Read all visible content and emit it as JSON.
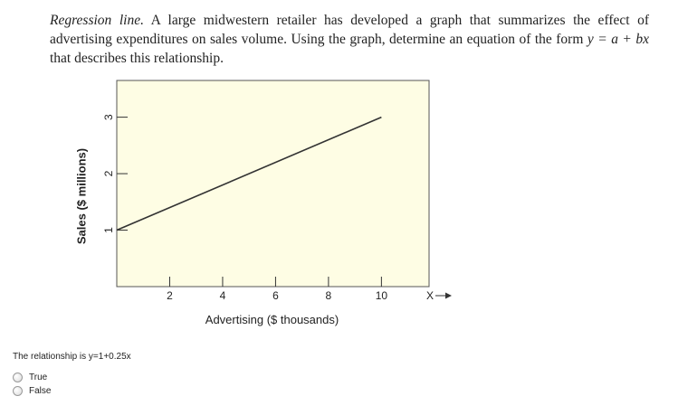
{
  "problem": {
    "lead": "Regression line.",
    "text": "A large midwestern retailer has developed a graph that summarizes the effect of advertising expenditures on sales volume. Using the graph, determine an equation of the form",
    "equation": "y = a + bx",
    "tail": "that describes this relationship."
  },
  "chart_data": {
    "type": "line",
    "xlabel": "Advertising ($ thousands)",
    "ylabel": "Sales ($ millions)",
    "x_axis_symbol": "X",
    "x_ticks": [
      "2",
      "4",
      "6",
      "8",
      "10"
    ],
    "y_ticks": [
      "1",
      "2",
      "3"
    ],
    "xlim": [
      0,
      11.8
    ],
    "ylim": [
      0,
      3.65
    ],
    "series": [
      {
        "x": [
          0,
          10
        ],
        "y": [
          1,
          3
        ]
      }
    ],
    "background": "#fefde4",
    "grid": false
  },
  "question": {
    "statement": "The relationship is y=1+0.25x",
    "options": [
      "True",
      "False"
    ]
  }
}
